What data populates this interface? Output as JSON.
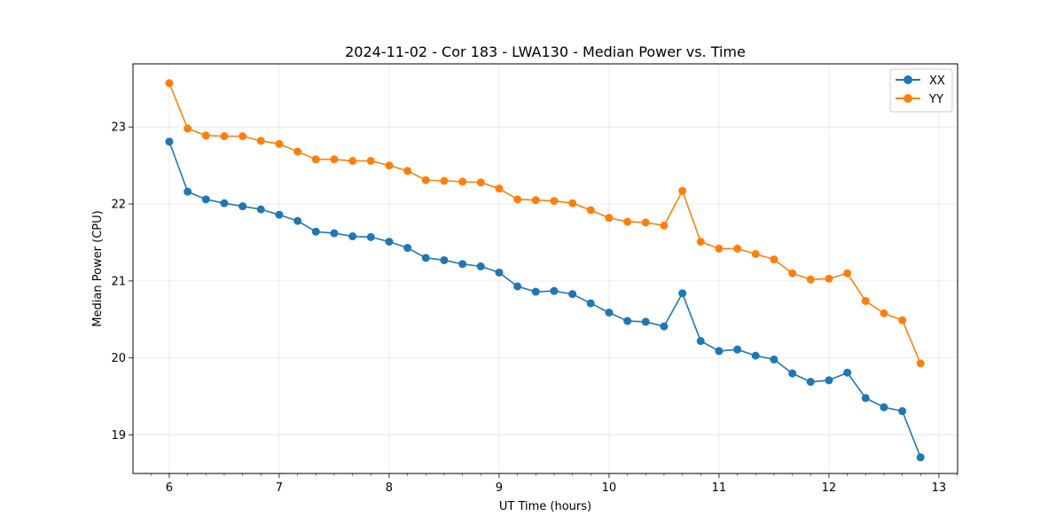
{
  "chart_data": {
    "type": "line",
    "title": "2024-11-02 - Cor 183 - LWA130 - Median Power vs. Time",
    "xlabel": "UT Time (hours)",
    "ylabel": "Median Power (CPU)",
    "xlim": [
      5.67,
      13.17
    ],
    "ylim": [
      18.5,
      23.82
    ],
    "xticks": [
      6,
      7,
      8,
      9,
      10,
      11,
      12,
      13
    ],
    "yticks": [
      19,
      20,
      21,
      22,
      23
    ],
    "grid": true,
    "legend_position": "top-right",
    "x": [
      6.0,
      6.167,
      6.333,
      6.5,
      6.667,
      6.833,
      7.0,
      7.167,
      7.333,
      7.5,
      7.667,
      7.833,
      8.0,
      8.167,
      8.333,
      8.5,
      8.667,
      8.833,
      9.0,
      9.167,
      9.333,
      9.5,
      9.667,
      9.833,
      10.0,
      10.167,
      10.333,
      10.5,
      10.667,
      10.833,
      11.0,
      11.167,
      11.333,
      11.5,
      11.667,
      11.833,
      12.0,
      12.167,
      12.333,
      12.5,
      12.667,
      12.833
    ],
    "series": [
      {
        "name": "XX",
        "color": "#1f77b4",
        "values": [
          22.81,
          22.16,
          22.06,
          22.01,
          21.97,
          21.93,
          21.86,
          21.78,
          21.64,
          21.62,
          21.58,
          21.57,
          21.51,
          21.43,
          21.3,
          21.27,
          21.22,
          21.19,
          21.11,
          20.93,
          20.86,
          20.87,
          20.83,
          20.71,
          20.59,
          20.48,
          20.47,
          20.41,
          20.84,
          20.22,
          20.09,
          20.11,
          20.03,
          19.98,
          19.8,
          19.69,
          19.71,
          19.81,
          19.48,
          19.36,
          19.31,
          18.71
        ]
      },
      {
        "name": "YY",
        "color": "#ff7f0e",
        "values": [
          23.57,
          22.98,
          22.89,
          22.88,
          22.88,
          22.82,
          22.78,
          22.68,
          22.58,
          22.58,
          22.56,
          22.56,
          22.5,
          22.43,
          22.31,
          22.3,
          22.29,
          22.28,
          22.2,
          22.06,
          22.05,
          22.04,
          22.01,
          21.92,
          21.82,
          21.77,
          21.76,
          21.72,
          22.17,
          21.51,
          21.42,
          21.42,
          21.35,
          21.28,
          21.1,
          21.02,
          21.03,
          21.1,
          20.74,
          20.58,
          20.49,
          19.93
        ]
      }
    ]
  }
}
